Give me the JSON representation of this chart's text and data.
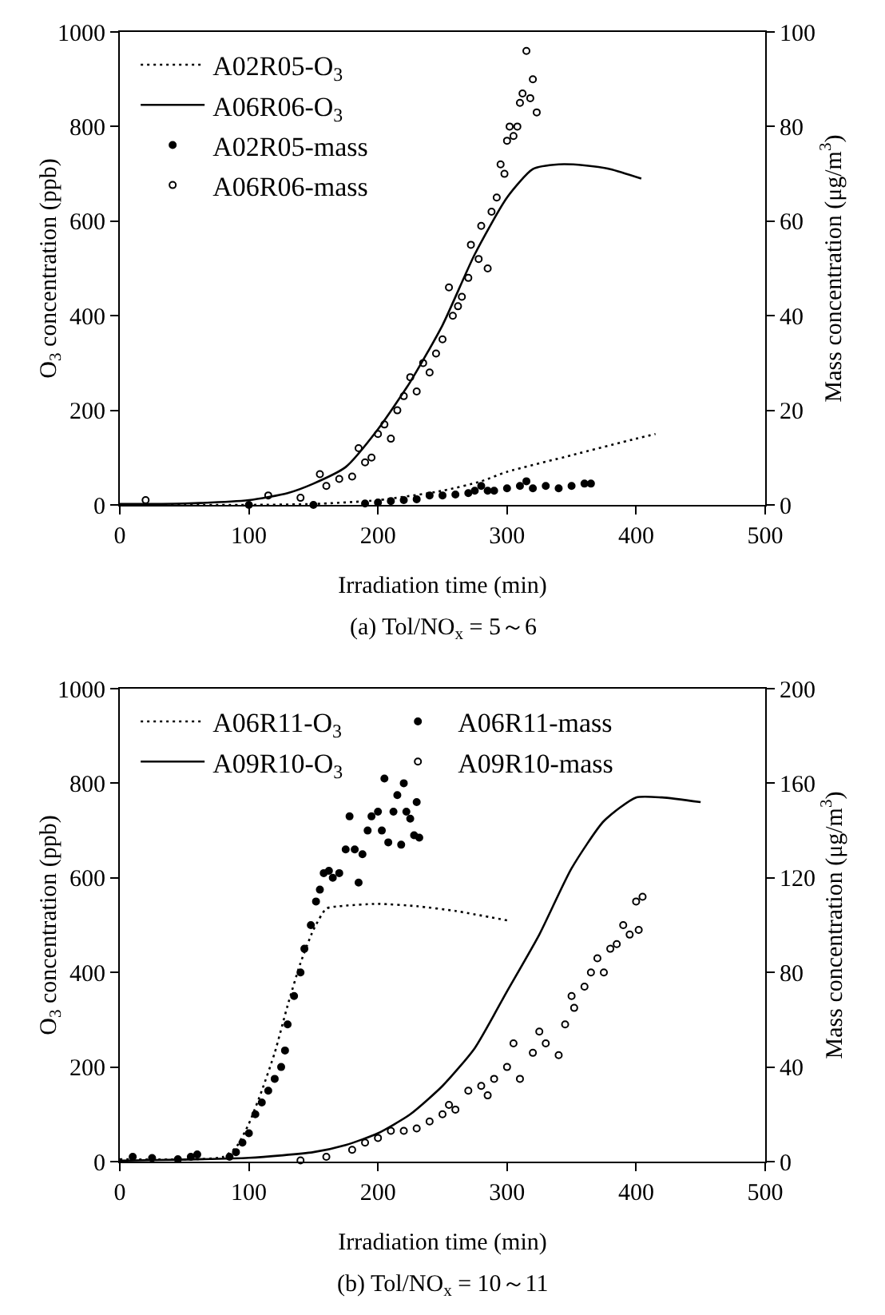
{
  "chart_data": [
    {
      "type": "line",
      "xlabel": "Irradiation time (min)",
      "ylabel": "O$_{3}$ concentration (ppb)",
      "y2label": "Mass concentration (μg/m$^{3}$)",
      "annotations": [
        "(a) Tol/NO$_{x}$ = 5～6"
      ],
      "xlim": [
        0,
        500
      ],
      "xticks": [
        0,
        100,
        200,
        300,
        400,
        500
      ],
      "ylim": [
        0,
        1000
      ],
      "yticks": [
        0,
        200,
        400,
        600,
        800,
        1000
      ],
      "y2lim": [
        0,
        100
      ],
      "y2ticks": [
        0,
        20,
        40,
        60,
        80,
        100
      ],
      "grid": false,
      "legend": "top left",
      "series": [
        {
          "name": "A02R05-O$_{3}$",
          "color": "#000000",
          "line_style": "dotted",
          "marker": "none",
          "x": [
            0,
            100,
            150,
            200,
            250,
            280,
            300,
            350,
            400,
            415
          ],
          "values": [
            0,
            0,
            2,
            10,
            30,
            50,
            70,
            105,
            140,
            150
          ]
        },
        {
          "name": "A06R06-O$_{3}$",
          "color": "#000000",
          "line_style": "solid",
          "marker": "none",
          "x": [
            0,
            50,
            100,
            130,
            150,
            175,
            200,
            225,
            250,
            275,
            300,
            320,
            340,
            360,
            380,
            404
          ],
          "values": [
            2,
            3,
            10,
            25,
            45,
            80,
            160,
            260,
            380,
            530,
            650,
            710,
            720,
            718,
            710,
            690
          ]
        },
        {
          "name": "A02R05-mass",
          "type": "scatter",
          "axis": "y2",
          "color": "#000000",
          "marker": "circle",
          "x": [
            100,
            150,
            190,
            200,
            210,
            220,
            230,
            240,
            250,
            260,
            270,
            275,
            280,
            285,
            290,
            300,
            310,
            315,
            320,
            330,
            340,
            350,
            360,
            365
          ],
          "values": [
            0,
            0,
            0.3,
            0.5,
            0.8,
            1,
            1.2,
            2,
            2,
            2.2,
            2.5,
            3,
            4,
            3,
            3,
            3.5,
            4,
            5,
            3.5,
            4,
            3.5,
            4,
            4.5,
            4.5
          ]
        },
        {
          "name": "A06R06-mass",
          "type": "scatter",
          "axis": "y2",
          "color": "#000000",
          "marker": "circle-open",
          "x": [
            20,
            115,
            140,
            155,
            160,
            170,
            180,
            185,
            190,
            195,
            200,
            205,
            210,
            215,
            220,
            225,
            230,
            235,
            240,
            245,
            250,
            255,
            258,
            262,
            265,
            270,
            272,
            278,
            280,
            285,
            288,
            292,
            295,
            298,
            300,
            302,
            305,
            308,
            310,
            312,
            315,
            318,
            320,
            323
          ],
          "values": [
            1,
            2,
            1.5,
            6.5,
            4,
            5.5,
            6,
            12,
            9,
            10,
            15,
            17,
            14,
            20,
            23,
            27,
            24,
            30,
            28,
            32,
            35,
            46,
            40,
            42,
            44,
            48,
            55,
            52,
            59,
            50,
            62,
            65,
            72,
            70,
            77,
            80,
            78,
            80,
            85,
            87,
            96,
            86,
            90,
            83
          ]
        }
      ]
    },
    {
      "type": "line",
      "xlabel": "Irradiation time (min)",
      "ylabel": "O$_{3}$ concentration (ppb)",
      "y2label": "Mass concentration (μg/m$^{3}$)",
      "annotations": [
        "(b) Tol/NO$_{x}$ = 10～11"
      ],
      "xlim": [
        0,
        500
      ],
      "xticks": [
        0,
        100,
        200,
        300,
        400,
        500
      ],
      "ylim": [
        0,
        1000
      ],
      "yticks": [
        0,
        200,
        400,
        600,
        800,
        1000
      ],
      "y2lim": [
        0,
        200
      ],
      "y2ticks": [
        0,
        40,
        80,
        120,
        160,
        200
      ],
      "grid": false,
      "legend": "top left",
      "series": [
        {
          "name": "A06R11-O$_{3}$",
          "color": "#000000",
          "line_style": "dotted",
          "marker": "none",
          "x": [
            0,
            60,
            80,
            90,
            100,
            110,
            120,
            130,
            140,
            150,
            160,
            170,
            200,
            230,
            260,
            300
          ],
          "values": [
            5,
            5,
            10,
            30,
            80,
            150,
            230,
            330,
            420,
            490,
            535,
            540,
            545,
            540,
            530,
            510
          ]
        },
        {
          "name": "A06R11-mass",
          "type": "scatter",
          "axis": "y2",
          "color": "#000000",
          "marker": "circle",
          "x": [
            10,
            25,
            45,
            55,
            60,
            85,
            90,
            95,
            100,
            105,
            110,
            115,
            120,
            125,
            128,
            130,
            135,
            140,
            143,
            148,
            152,
            155,
            158,
            162,
            165,
            170,
            175,
            178,
            182,
            185,
            188,
            192,
            195,
            200,
            203,
            205,
            208,
            212,
            215,
            218,
            220,
            222,
            225,
            228,
            230,
            232
          ],
          "values": [
            2,
            1.5,
            1,
            2,
            3,
            2,
            4,
            8,
            12,
            20,
            25,
            30,
            35,
            40,
            47,
            58,
            70,
            80,
            90,
            100,
            110,
            115,
            122,
            123,
            120,
            122,
            132,
            146,
            132,
            118,
            130,
            140,
            146,
            148,
            140,
            162,
            135,
            148,
            155,
            134,
            160,
            148,
            145,
            138,
            152,
            137
          ]
        },
        {
          "name": "A09R10-O$_{3}$",
          "color": "#000000",
          "line_style": "solid",
          "marker": "none",
          "x": [
            0,
            100,
            150,
            175,
            200,
            225,
            250,
            275,
            300,
            325,
            350,
            375,
            400,
            420,
            450
          ],
          "values": [
            2,
            8,
            20,
            35,
            60,
            100,
            160,
            240,
            360,
            480,
            620,
            720,
            770,
            770,
            760
          ]
        },
        {
          "name": "A09R10-mass",
          "type": "scatter",
          "axis": "y2",
          "color": "#000000",
          "marker": "circle-open",
          "x": [
            140,
            160,
            180,
            190,
            200,
            210,
            220,
            230,
            240,
            250,
            255,
            260,
            270,
            280,
            285,
            290,
            300,
            305,
            310,
            320,
            325,
            330,
            340,
            345,
            350,
            352,
            360,
            365,
            370,
            375,
            380,
            385,
            390,
            395,
            400,
            402,
            405
          ],
          "values": [
            0.5,
            2,
            5,
            8,
            10,
            13,
            13,
            14,
            17,
            20,
            24,
            22,
            30,
            32,
            28,
            35,
            40,
            50,
            35,
            46,
            55,
            50,
            45,
            58,
            70,
            65,
            74,
            80,
            86,
            80,
            90,
            92,
            100,
            96,
            110,
            98,
            112
          ]
        }
      ]
    }
  ]
}
